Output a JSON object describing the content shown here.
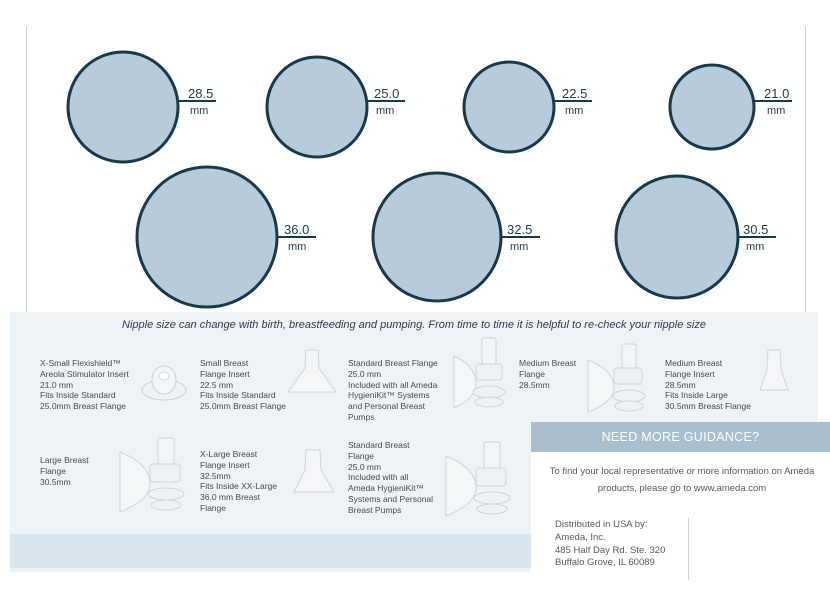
{
  "top_circles": [
    {
      "size": "28.5",
      "unit": "mm"
    },
    {
      "size": "25.0",
      "unit": "mm"
    },
    {
      "size": "22.5",
      "unit": "mm"
    },
    {
      "size": "21.0",
      "unit": "mm"
    }
  ],
  "bottom_circles": [
    {
      "size": "36.0",
      "unit": "mm"
    },
    {
      "size": "32.5",
      "unit": "mm"
    },
    {
      "size": "30.5",
      "unit": "mm"
    }
  ],
  "note": "Nipple size can change with birth, breastfeeding and pumping. From time to time it is helpful to re-check your nipple size",
  "products": [
    {
      "text": "X-Small Flexishield™\nAreola Stimulator Insert\n21.0 mm\nFits Inside Standard\n25.0mm Breast Flange"
    },
    {
      "text": "Small Breast\nFlange Insert\n22.5 mm\nFits Inside Standard\n25.0mm Breast Flange"
    },
    {
      "text": "Standard Breast Flange\n25.0 mm\nIncluded with all Ameda\nHygieniKit™ Systems\nand Personal Breast\nPumps"
    },
    {
      "text": "Medium Breast\nFlange\n28.5mm"
    },
    {
      "text": "Medium Breast\nFlange Insert\n28.5mm\nFits Inside Large\n30.5mm Breast Flange"
    },
    {
      "text": "Large Breast\nFlange\n30.5mm"
    },
    {
      "text": "X-Large Breast\nFlange Insert\n32.5mm\nFits Inside XX-Large\n36.0 mm Breast\nFlange"
    },
    {
      "text": "Standard Breast\nFlange\n25.0 mm\nIncluded with all\nAmeda HygieniKit™\nSystems and Personal\nBreast Pumps"
    }
  ],
  "guidance": {
    "title": "NEED MORE GUIDANCE?",
    "text": "To find your local representative or more information on Ameda products, please go to www.ameda.com"
  },
  "distributor": "Distributed in USA by:\nAmeda, Inc.\n485 Half Day Rd. Ste. 320\nBuffalo Grove, IL 60089",
  "colors": {
    "circle_fill": "#b7cbdb",
    "circle_stroke": "#17394a",
    "panel": "#eef3f8",
    "guidance_header": "#a9bfcf"
  }
}
